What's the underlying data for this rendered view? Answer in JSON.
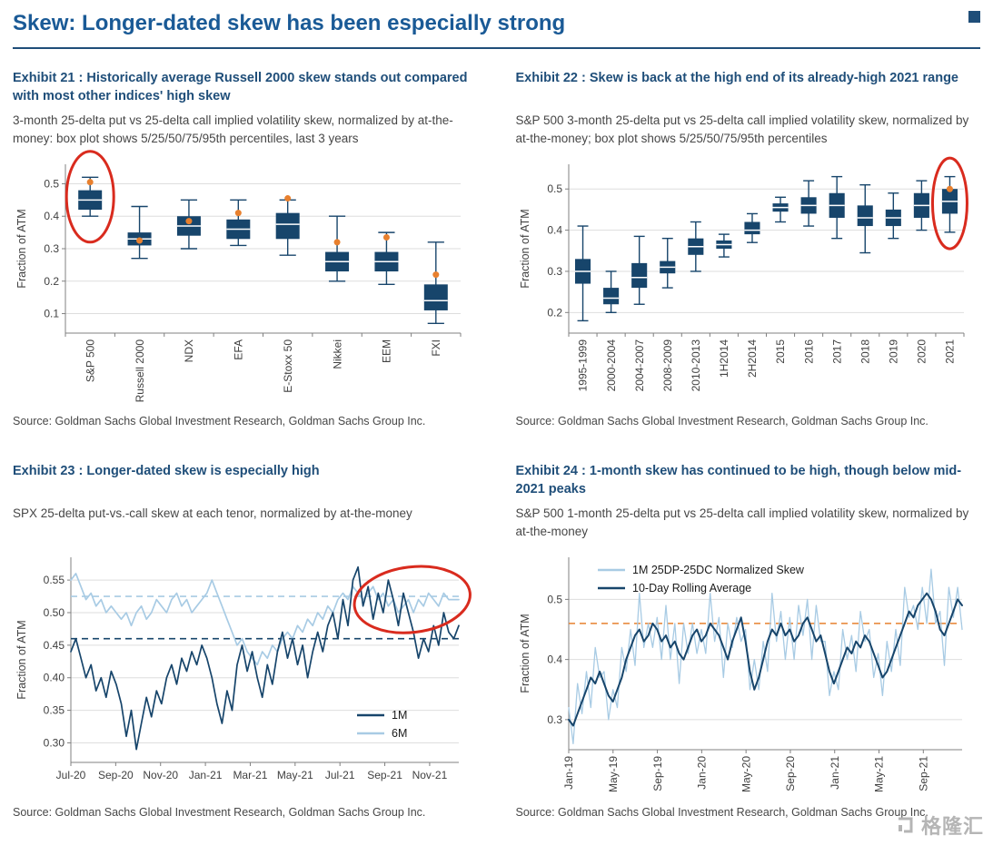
{
  "page": {
    "title": "Skew: Longer-dated skew has been especially strong"
  },
  "source_note": "Source: Goldman Sachs Global Investment Research, Goldman Sachs Group Inc.",
  "watermark": {
    "text": "格隆汇"
  },
  "chart_data": [
    {
      "type": "boxplot",
      "title": "Exhibit 21 : Historically average Russell 2000 skew stands out compared with most other indices' high skew",
      "subtitle": "3-month 25-delta put vs 25-delta call implied volatility skew, normalized by at-the-money: box plot shows 5/25/50/75/95th percentiles, last 3 years",
      "ylabel": "Fraction of ATM",
      "ylim": [
        0.04,
        0.56
      ],
      "ytick_values": [
        0.1,
        0.2,
        0.3,
        0.4,
        0.5
      ],
      "ytick_labels": [
        "0.1",
        "0.2",
        "0.3",
        "0.4",
        "0.5"
      ],
      "categories": [
        "S&P 500",
        "Russell 2000",
        "NDX",
        "EFA",
        "E-Stoxx 50",
        "Nikkei",
        "EEM",
        "FXI"
      ],
      "boxes": [
        [
          0.4,
          0.42,
          0.45,
          0.48,
          0.52
        ],
        [
          0.27,
          0.31,
          0.33,
          0.35,
          0.43
        ],
        [
          0.3,
          0.34,
          0.37,
          0.4,
          0.45
        ],
        [
          0.31,
          0.33,
          0.36,
          0.39,
          0.45
        ],
        [
          0.28,
          0.33,
          0.375,
          0.41,
          0.45
        ],
        [
          0.2,
          0.23,
          0.26,
          0.29,
          0.4
        ],
        [
          0.19,
          0.23,
          0.26,
          0.29,
          0.35
        ],
        [
          0.07,
          0.11,
          0.14,
          0.19,
          0.32
        ]
      ],
      "dots": [
        0.505,
        0.325,
        0.385,
        0.41,
        0.455,
        0.32,
        0.335,
        0.22
      ],
      "box_color": "#17456b",
      "dot_color": "#e8802e",
      "grid": true,
      "rotate_x_labels": true,
      "highlight_ellipse": {
        "category_index": 0,
        "center_value": 0.46,
        "rx": 26,
        "ry": 50,
        "color": "#d92b1e"
      }
    },
    {
      "type": "boxplot",
      "title": "Exhibit 22 : Skew is back at the high end of its already-high 2021 range",
      "subtitle": "S&P 500 3-month 25-delta put vs 25-delta call implied volatility skew, normalized by at-the-money; box plot shows 5/25/50/75/95th percentiles",
      "ylabel": "Fraction of ATM",
      "ylim": [
        0.15,
        0.56
      ],
      "ytick_values": [
        0.2,
        0.3,
        0.4,
        0.5
      ],
      "ytick_labels": [
        "0.2",
        "0.3",
        "0.4",
        "0.5"
      ],
      "categories": [
        "1995-1999",
        "2000-2004",
        "2004-2007",
        "2008-2009",
        "2010-2013",
        "1H2014",
        "2H2014",
        "2015",
        "2016",
        "2017",
        "2018",
        "2019",
        "2020",
        "2021"
      ],
      "boxes": [
        [
          0.18,
          0.27,
          0.3,
          0.33,
          0.41
        ],
        [
          0.2,
          0.22,
          0.235,
          0.26,
          0.3
        ],
        [
          0.22,
          0.26,
          0.285,
          0.32,
          0.385
        ],
        [
          0.26,
          0.295,
          0.31,
          0.325,
          0.38
        ],
        [
          0.3,
          0.34,
          0.36,
          0.38,
          0.42
        ],
        [
          0.335,
          0.355,
          0.365,
          0.375,
          0.39
        ],
        [
          0.37,
          0.39,
          0.4,
          0.42,
          0.44
        ],
        [
          0.42,
          0.445,
          0.455,
          0.465,
          0.48
        ],
        [
          0.41,
          0.44,
          0.46,
          0.48,
          0.52
        ],
        [
          0.38,
          0.43,
          0.46,
          0.49,
          0.53
        ],
        [
          0.345,
          0.41,
          0.43,
          0.46,
          0.51
        ],
        [
          0.38,
          0.41,
          0.43,
          0.45,
          0.49
        ],
        [
          0.4,
          0.43,
          0.46,
          0.49,
          0.52
        ],
        [
          0.395,
          0.44,
          0.47,
          0.5,
          0.53
        ]
      ],
      "dots": [
        null,
        null,
        null,
        null,
        null,
        null,
        null,
        null,
        null,
        null,
        null,
        null,
        null,
        0.5
      ],
      "box_color": "#17456b",
      "dot_color": "#e8802e",
      "grid": true,
      "rotate_x_labels": true,
      "highlight_ellipse": {
        "category_index": 13,
        "center_value": 0.465,
        "rx": 19,
        "ry": 50,
        "color": "#d92b1e"
      }
    },
    {
      "type": "line",
      "title": "Exhibit 23 : Longer-dated skew is especially high",
      "subtitle": "SPX 25-delta put-vs.-call skew at each tenor, normalized by at-the-money",
      "ylabel": "Fraction of ATM",
      "ylim": [
        0.27,
        0.585
      ],
      "ytick_values": [
        0.3,
        0.35,
        0.4,
        0.45,
        0.5,
        0.55
      ],
      "ytick_labels": [
        "0.30",
        "0.35",
        "0.40",
        "0.45",
        "0.50",
        "0.55"
      ],
      "x_tick_labels": [
        "Jul-20",
        "Sep-20",
        "Nov-20",
        "Jan-21",
        "Mar-21",
        "May-21",
        "Jul-21",
        "Sep-21",
        "Nov-21"
      ],
      "x_span_months": 17.3,
      "x_tick_interval_months": 2,
      "rotate_x_labels": false,
      "grid": true,
      "draw_reverse": true,
      "series": [
        {
          "name": "1M",
          "color": "#17456b",
          "width": 1.7,
          "values": [
            0.44,
            0.46,
            0.43,
            0.4,
            0.42,
            0.38,
            0.4,
            0.37,
            0.41,
            0.39,
            0.36,
            0.31,
            0.35,
            0.29,
            0.33,
            0.37,
            0.34,
            0.38,
            0.36,
            0.4,
            0.42,
            0.39,
            0.43,
            0.41,
            0.44,
            0.42,
            0.45,
            0.43,
            0.4,
            0.36,
            0.33,
            0.38,
            0.35,
            0.42,
            0.45,
            0.41,
            0.44,
            0.4,
            0.37,
            0.42,
            0.39,
            0.44,
            0.47,
            0.43,
            0.46,
            0.42,
            0.45,
            0.4,
            0.44,
            0.47,
            0.44,
            0.48,
            0.5,
            0.46,
            0.52,
            0.48,
            0.55,
            0.57,
            0.51,
            0.54,
            0.49,
            0.53,
            0.5,
            0.55,
            0.52,
            0.48,
            0.53,
            0.5,
            0.47,
            0.43,
            0.46,
            0.44,
            0.48,
            0.45,
            0.5,
            0.47,
            0.46,
            0.48
          ]
        },
        {
          "name": "6M",
          "color": "#a8cbe4",
          "width": 1.7,
          "values": [
            0.55,
            0.56,
            0.54,
            0.52,
            0.53,
            0.51,
            0.52,
            0.5,
            0.51,
            0.5,
            0.49,
            0.5,
            0.48,
            0.5,
            0.51,
            0.49,
            0.5,
            0.52,
            0.51,
            0.5,
            0.52,
            0.53,
            0.51,
            0.52,
            0.5,
            0.51,
            0.52,
            0.53,
            0.55,
            0.53,
            0.51,
            0.49,
            0.47,
            0.45,
            0.46,
            0.44,
            0.43,
            0.42,
            0.44,
            0.43,
            0.45,
            0.44,
            0.46,
            0.47,
            0.46,
            0.48,
            0.47,
            0.49,
            0.48,
            0.5,
            0.49,
            0.51,
            0.5,
            0.52,
            0.53,
            0.52,
            0.54,
            0.53,
            0.52,
            0.53,
            0.54,
            0.52,
            0.53,
            0.51,
            0.52,
            0.5,
            0.51,
            0.52,
            0.5,
            0.52,
            0.51,
            0.53,
            0.52,
            0.51,
            0.53,
            0.52,
            0.52,
            0.52
          ]
        }
      ],
      "ref_lines": [
        {
          "value": 0.46,
          "color": "#17456b"
        },
        {
          "value": 0.525,
          "color": "#a8cbe4"
        }
      ],
      "legend": {
        "position": "bottom-right"
      },
      "highlight_ellipse": {
        "x_frac": 0.88,
        "y_value": 0.52,
        "rx": 64,
        "ry": 36,
        "rotate": -7,
        "color": "#d92b1e"
      }
    },
    {
      "type": "line",
      "title": "Exhibit 24 : 1-month skew has continued to be high, though below mid-2021 peaks",
      "subtitle": "S&P 500 1-month 25-delta put vs 25-delta call implied volatility skew, normalized by at-the-money",
      "ylabel": "Fraction of ATM",
      "ylim": [
        0.25,
        0.57
      ],
      "ytick_values": [
        0.3,
        0.4,
        0.5
      ],
      "ytick_labels": [
        "0.3",
        "0.4",
        "0.5"
      ],
      "x_tick_labels": [
        "Jan-19",
        "May-19",
        "Sep-19",
        "Jan-20",
        "May-20",
        "Sep-20",
        "Jan-21",
        "May-21",
        "Sep-21"
      ],
      "x_span_months": 35.5,
      "x_tick_interval_months": 4,
      "rotate_x_labels": true,
      "grid": true,
      "draw_reverse": false,
      "series": [
        {
          "name": "1M 25DP-25DC Normalized Skew",
          "color": "#a8cbe4",
          "width": 1.3,
          "values": [
            0.32,
            0.26,
            0.36,
            0.31,
            0.38,
            0.32,
            0.42,
            0.37,
            0.38,
            0.3,
            0.35,
            0.32,
            0.42,
            0.38,
            0.45,
            0.39,
            0.51,
            0.42,
            0.46,
            0.42,
            0.47,
            0.4,
            0.49,
            0.4,
            0.46,
            0.36,
            0.46,
            0.41,
            0.46,
            0.41,
            0.45,
            0.41,
            0.51,
            0.43,
            0.47,
            0.37,
            0.46,
            0.42,
            0.47,
            0.43,
            0.45,
            0.35,
            0.4,
            0.35,
            0.43,
            0.38,
            0.51,
            0.43,
            0.48,
            0.4,
            0.47,
            0.4,
            0.49,
            0.44,
            0.5,
            0.4,
            0.49,
            0.43,
            0.43,
            0.34,
            0.38,
            0.35,
            0.45,
            0.4,
            0.44,
            0.38,
            0.48,
            0.43,
            0.45,
            0.37,
            0.41,
            0.34,
            0.43,
            0.38,
            0.45,
            0.39,
            0.52,
            0.47,
            0.49,
            0.45,
            0.52,
            0.46,
            0.55,
            0.46,
            0.48,
            0.39,
            0.52,
            0.47,
            0.52,
            0.45
          ]
        },
        {
          "name": "10-Day Rolling Average",
          "color": "#17456b",
          "width": 2.0,
          "values": [
            0.3,
            0.29,
            0.31,
            0.33,
            0.35,
            0.37,
            0.36,
            0.38,
            0.36,
            0.34,
            0.33,
            0.35,
            0.37,
            0.4,
            0.42,
            0.44,
            0.45,
            0.43,
            0.44,
            0.46,
            0.45,
            0.43,
            0.44,
            0.42,
            0.43,
            0.41,
            0.4,
            0.42,
            0.44,
            0.45,
            0.43,
            0.44,
            0.46,
            0.45,
            0.44,
            0.42,
            0.4,
            0.43,
            0.45,
            0.47,
            0.43,
            0.38,
            0.35,
            0.37,
            0.4,
            0.43,
            0.45,
            0.44,
            0.46,
            0.44,
            0.45,
            0.43,
            0.44,
            0.46,
            0.47,
            0.45,
            0.43,
            0.44,
            0.41,
            0.38,
            0.36,
            0.38,
            0.4,
            0.42,
            0.41,
            0.43,
            0.42,
            0.44,
            0.43,
            0.41,
            0.39,
            0.37,
            0.38,
            0.4,
            0.42,
            0.44,
            0.46,
            0.48,
            0.47,
            0.49,
            0.5,
            0.51,
            0.5,
            0.48,
            0.45,
            0.44,
            0.46,
            0.48,
            0.5,
            0.49
          ]
        }
      ],
      "ref_lines": [
        {
          "value": 0.46,
          "color": "#e8802e"
        }
      ],
      "legend": {
        "position": "top-left"
      }
    }
  ]
}
